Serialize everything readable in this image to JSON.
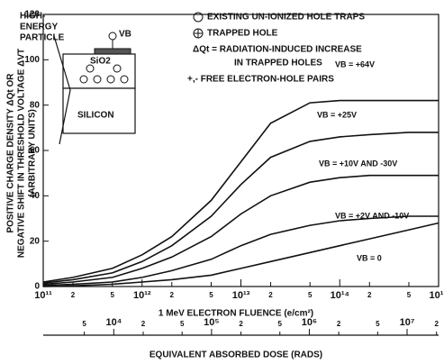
{
  "chart_data": {
    "type": "line",
    "ylabel": [
      "POSITIVE CHARGE DENSITY ΔQt OR",
      "NEGATIVE SHIFT IN THRESHOLD VOLTAGE ΔVT",
      "(ARBITRARY UNITS)"
    ],
    "xlabel": "1 MeV ELECTRON FLUENCE (e/cm²)",
    "x2label": "EQUIVALENT ABSORBED DOSE (RADS)",
    "log_x": true,
    "x": [
      100000000000.0,
      200000000000.0,
      500000000000.0,
      1000000000000.0,
      2000000000000.0,
      5000000000000.0,
      10000000000000.0,
      20000000000000.0,
      50000000000000.0,
      100000000000000.0,
      200000000000000.0,
      500000000000000.0,
      1000000000000000.0
    ],
    "xlim": [
      100000000000.0,
      1000000000000000.0
    ],
    "xticks": [
      {
        "value": 100000000000.0,
        "label": "10¹¹"
      },
      {
        "value": 200000000000.0,
        "label": "2"
      },
      {
        "value": 500000000000.0,
        "label": "5"
      },
      {
        "value": 1000000000000.0,
        "label": "10¹²"
      },
      {
        "value": 2000000000000.0,
        "label": "2"
      },
      {
        "value": 5000000000000.0,
        "label": "5"
      },
      {
        "value": 10000000000000.0,
        "label": "10¹³"
      },
      {
        "value": 20000000000000.0,
        "label": "2"
      },
      {
        "value": 50000000000000.0,
        "label": "5"
      },
      {
        "value": 100000000000000.0,
        "label": "10¹⁴"
      },
      {
        "value": 200000000000000.0,
        "label": "2"
      },
      {
        "value": 500000000000000.0,
        "label": "5"
      },
      {
        "value": 1000000000000000.0,
        "label": "10¹⁵"
      }
    ],
    "x2lim": [
      1900,
      21000000
    ],
    "x2ticks": [
      {
        "value": 5000,
        "label": "5"
      },
      {
        "value": 10000,
        "label": "10⁴"
      },
      {
        "value": 20000,
        "label": "2"
      },
      {
        "value": 50000,
        "label": "5"
      },
      {
        "value": 100000,
        "label": "10⁵"
      },
      {
        "value": 200000,
        "label": "2"
      },
      {
        "value": 500000,
        "label": "5"
      },
      {
        "value": 1000000,
        "label": "10⁶"
      },
      {
        "value": 2000000,
        "label": "2"
      },
      {
        "value": 5000000,
        "label": "5"
      },
      {
        "value": 10000000,
        "label": "10⁷"
      },
      {
        "value": 20000000,
        "label": "2"
      }
    ],
    "ylim": [
      0,
      120
    ],
    "yticks": [
      0,
      20,
      40,
      60,
      80,
      100,
      120
    ],
    "series": [
      {
        "name": "VB = +64V",
        "color": "#111111",
        "values": [
          2,
          4,
          8,
          14,
          22,
          38,
          55,
          72,
          81,
          82,
          82,
          82,
          82
        ]
      },
      {
        "name": "VB = +25V",
        "color": "#111111",
        "values": [
          1.5,
          3,
          6,
          11,
          18,
          31,
          45,
          57,
          64,
          66,
          67,
          68,
          68
        ]
      },
      {
        "name": "VB = +10V AND -30V",
        "color": "#111111",
        "values": [
          1,
          2,
          4,
          8,
          13,
          22,
          32,
          40,
          46,
          48,
          49,
          49,
          49
        ]
      },
      {
        "name": "VB = +2V AND -10V",
        "color": "#111111",
        "values": [
          0.5,
          1,
          2,
          4,
          7,
          12,
          18,
          23,
          27,
          29,
          30,
          31,
          31
        ]
      },
      {
        "name": "VB = 0",
        "color": "#111111",
        "values": [
          0,
          0.3,
          1,
          2,
          3,
          5,
          8,
          11,
          15,
          18,
          21,
          25,
          28
        ]
      }
    ],
    "annotations": [
      "EXISTING UN-IONIZED HOLE TRAPS",
      "TRAPPED HOLE",
      "ΔQt = RADIATION-INDUCED INCREASE",
      "IN TRAPPED HOLES",
      "+,- FREE ELECTRON-HOLE PAIRS"
    ],
    "inset_labels": [
      "HIGH-",
      "ENERGY",
      "PARTICLE",
      "VB",
      "SiO2",
      "SILICON"
    ]
  }
}
